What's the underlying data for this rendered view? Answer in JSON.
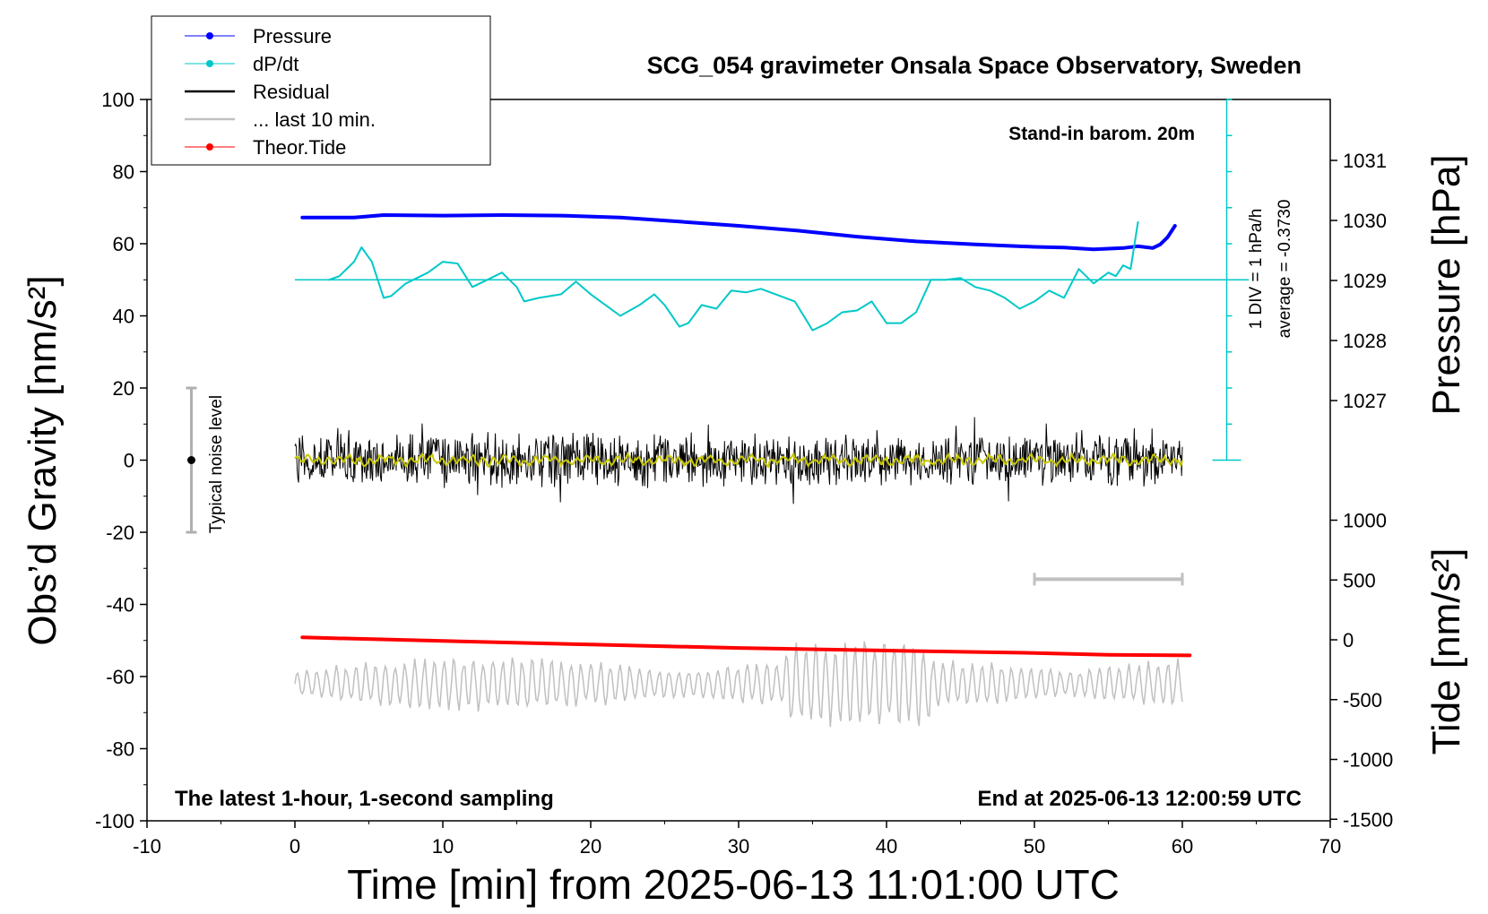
{
  "chart_data": {
    "type": "line",
    "title": "SCG_054 gravimeter Onsala Space Observatory, Sweden",
    "xlabel": "Time [min] from 2025-06-13 11:01:00 UTC",
    "ylabel": "Obs’d Gravity [nm/s²]",
    "ylabel_right_pressure": "Pressure [hPa]",
    "ylabel_right_tide": "Tide [nm/s²]",
    "xlim": [
      -10,
      70
    ],
    "ylim": [
      -100,
      100
    ],
    "pressure_lim": [
      1026,
      1032
    ],
    "tide_lim": [
      -1500,
      1500
    ],
    "x_ticks": [
      -10,
      0,
      10,
      20,
      30,
      40,
      50,
      60,
      70
    ],
    "y_ticks": [
      100,
      80,
      60,
      40,
      20,
      0,
      -20,
      -40,
      -60,
      -80,
      -100
    ],
    "pressure_ticks": [
      1031,
      1030,
      1029,
      1028,
      1027
    ],
    "tide_ticks": [
      1000,
      500,
      0,
      -500,
      -1000,
      -1500
    ],
    "grid": false,
    "legend_position": "top-left",
    "legend": [
      {
        "label": "Pressure",
        "color": "#0000ff",
        "marker": true
      },
      {
        "label": "dP/dt",
        "color": "#00c8c8",
        "marker": true
      },
      {
        "label": "Residual",
        "color": "#000000",
        "marker": false
      },
      {
        "label": "... last 10 min.",
        "color": "#c0c0c0",
        "marker": false
      },
      {
        "label": "Theor.Tide",
        "color": "#ff0000",
        "marker": true
      }
    ],
    "annotations": {
      "barometer": "Stand-in barom. 20m",
      "sampling": "The latest 1-hour, 1-second sampling",
      "end_time": "End at 2025-06-13 12:00:59 UTC",
      "dpdt_scale": "1 DIV = 1 hPa/h",
      "dpdt_average": "average = -0.3730",
      "noise": "Typical noise level"
    },
    "noise_bar": {
      "x": -7,
      "center": 0,
      "half_range": 20
    },
    "last10_bar": {
      "x_start": 50,
      "x_end": 60,
      "y": -33
    },
    "dpdt_baseline": 50,
    "dpdt_scale_axis": {
      "x": 63,
      "y_start": 0,
      "y_end": 100,
      "divisions": 10
    },
    "series": [
      {
        "name": "Pressure",
        "axis": "pressure",
        "color": "#0000ff",
        "x": [
          0.5,
          4,
          6,
          10,
          14,
          18,
          22,
          26,
          30,
          34,
          38,
          42,
          46,
          50,
          52,
          54,
          55,
          56,
          57,
          58,
          58.5,
          59,
          59.5
        ],
        "values": [
          1030.05,
          1030.05,
          1030.09,
          1030.08,
          1030.09,
          1030.08,
          1030.05,
          1029.98,
          1029.91,
          1029.83,
          1029.73,
          1029.65,
          1029.6,
          1029.56,
          1029.55,
          1029.52,
          1029.53,
          1029.54,
          1029.57,
          1029.54,
          1029.6,
          1029.72,
          1029.91
        ]
      },
      {
        "name": "dP/dt",
        "axis": "left",
        "color": "#00c8c8",
        "x": [
          2.3,
          3,
          4,
          4.5,
          5.2,
          6,
          6.5,
          7.5,
          9,
          10,
          11,
          12,
          13,
          14,
          15,
          15.5,
          16.5,
          18,
          19,
          20,
          21,
          22,
          23.3,
          24.3,
          25,
          26,
          26.6,
          27.5,
          28.5,
          29.5,
          30.5,
          31.5,
          32.5,
          33.8,
          35,
          36,
          37,
          38,
          39,
          40,
          41,
          42,
          43,
          44,
          45,
          46,
          47,
          48,
          49,
          50,
          51,
          52,
          53,
          54,
          55,
          55.5,
          56,
          56.5,
          57
        ],
        "values": [
          50,
          51,
          55,
          59,
          55,
          45,
          45.5,
          49,
          52,
          55,
          54.5,
          48,
          50,
          52,
          48,
          44,
          45,
          46,
          49.5,
          46,
          43,
          40,
          43,
          46,
          43,
          37,
          38,
          43,
          42,
          47,
          46.5,
          47.5,
          46,
          44,
          36,
          38,
          41,
          41.5,
          44,
          38,
          38,
          41,
          50,
          50,
          50.5,
          48,
          47,
          45,
          42,
          44,
          47,
          45,
          53,
          49,
          52,
          51,
          54,
          53,
          66
        ]
      },
      {
        "name": "Theor.Tide",
        "axis": "tide",
        "color": "#ff0000",
        "x": [
          0.5,
          10,
          20,
          30,
          40,
          50,
          55,
          60.5
        ],
        "values": [
          20,
          -10,
          -40,
          -68,
          -90,
          -110,
          -125,
          -130
        ]
      }
    ]
  }
}
